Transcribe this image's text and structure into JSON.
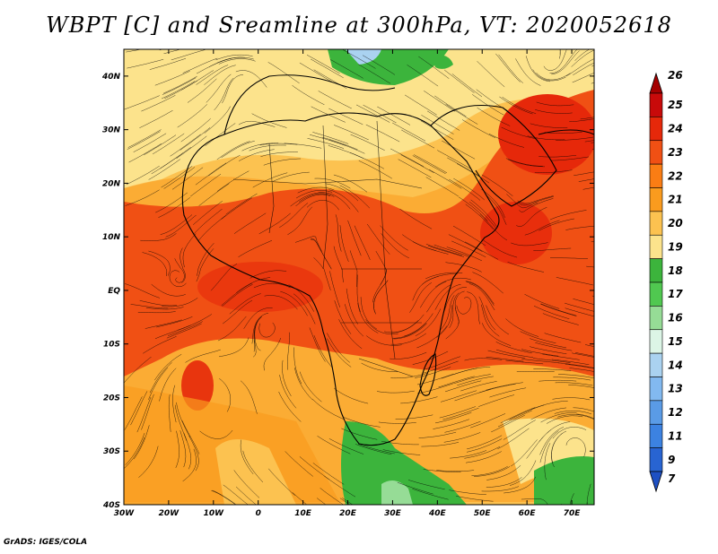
{
  "title": "WBPT [C] and Sreamline at 300hPa, VT: 2020052618",
  "credit": "GrADS: IGES/COLA",
  "map": {
    "lon_range": [
      -30,
      75
    ],
    "lat_range": [
      -40,
      45
    ],
    "lon_ticks": [
      {
        "value": -30,
        "label": "30W"
      },
      {
        "value": -20,
        "label": "20W"
      },
      {
        "value": -10,
        "label": "10W"
      },
      {
        "value": 0,
        "label": "0"
      },
      {
        "value": 10,
        "label": "10E"
      },
      {
        "value": 20,
        "label": "20E"
      },
      {
        "value": 30,
        "label": "30E"
      },
      {
        "value": 40,
        "label": "40E"
      },
      {
        "value": 50,
        "label": "50E"
      },
      {
        "value": 60,
        "label": "60E"
      },
      {
        "value": 70,
        "label": "70E"
      }
    ],
    "lat_ticks": [
      {
        "value": 40,
        "label": "40N"
      },
      {
        "value": 30,
        "label": "30N"
      },
      {
        "value": 20,
        "label": "20N"
      },
      {
        "value": 10,
        "label": "10N"
      },
      {
        "value": 0,
        "label": "EQ"
      },
      {
        "value": -10,
        "label": "10S"
      },
      {
        "value": -20,
        "label": "20S"
      },
      {
        "value": -30,
        "label": "30S"
      },
      {
        "value": -40,
        "label": "40S"
      }
    ]
  },
  "colorbar": {
    "levels": [
      {
        "label": "26",
        "color": "#a50000"
      },
      {
        "label": "25",
        "color": "#c80a0a"
      },
      {
        "label": "24",
        "color": "#e6280a"
      },
      {
        "label": "23",
        "color": "#f05014"
      },
      {
        "label": "22",
        "color": "#fa7d14"
      },
      {
        "label": "21",
        "color": "#fa9b1e"
      },
      {
        "label": "20",
        "color": "#fcc250"
      },
      {
        "label": "19",
        "color": "#fce38c"
      },
      {
        "label": "18",
        "color": "#3cb43c"
      },
      {
        "label": "17",
        "color": "#50c850"
      },
      {
        "label": "16",
        "color": "#96dc96"
      },
      {
        "label": "15",
        "color": "#dcf5e6"
      },
      {
        "label": "14",
        "color": "#aad2f0"
      },
      {
        "label": "13",
        "color": "#82b9f0"
      },
      {
        "label": "12",
        "color": "#5a9be6"
      },
      {
        "label": "11",
        "color": "#3c82e1"
      },
      {
        "label": "9",
        "color": "#2864d2"
      },
      {
        "label": "7",
        "color": "#1e50c3"
      }
    ]
  }
}
